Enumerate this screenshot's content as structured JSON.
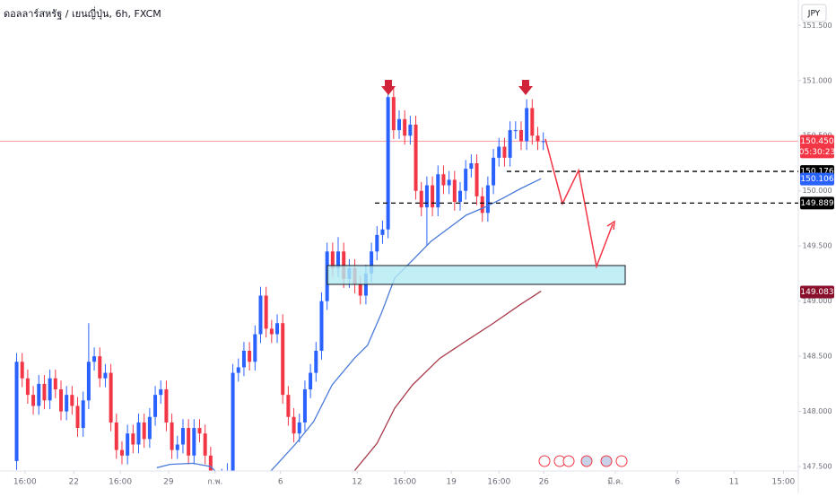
{
  "chart_data": {
    "type": "candlestick",
    "title": "ดอลลาร์สหรัฐ / เยนญี่ปุ่น, 6h, FXCM",
    "currency": "JPY",
    "up_color": "#2962ff",
    "down_color": "#f23645",
    "open": [
      147.55,
      148.45,
      148.3,
      148.15,
      148.05,
      148.25,
      148.1,
      148.3,
      148.2,
      148.0,
      148.15,
      148.05,
      147.85,
      148.1,
      148.45,
      148.5,
      148.3,
      148.35,
      147.9,
      147.65,
      147.6,
      147.8,
      147.7,
      147.9,
      147.75,
      147.95,
      148.15,
      148.2,
      147.9,
      147.65,
      147.7,
      147.85,
      147.6,
      147.85,
      147.8,
      147.6,
      147.35,
      147.3,
      147.4,
      147.45,
      148.35,
      148.4,
      148.55,
      148.45,
      148.7,
      149.05,
      148.75,
      148.7,
      148.8,
      148.15,
      147.95,
      147.8,
      147.9,
      148.2,
      148.35,
      148.55,
      149.0,
      149.45,
      149.3,
      149.45,
      149.2,
      149.3,
      149.15,
      149.05,
      149.25,
      149.45,
      149.6,
      149.65,
      150.85,
      150.55,
      150.65,
      150.5,
      150.6,
      150.0,
      149.85,
      150.05,
      149.85,
      150.15,
      150.05,
      150.1,
      149.9,
      150.0,
      150.2,
      150.25,
      149.95,
      149.8,
      150.05,
      150.3,
      150.4,
      150.3,
      150.55,
      150.55,
      150.45,
      150.75,
      150.5,
      150.45
    ],
    "high": [
      148.53,
      148.53,
      148.38,
      148.23,
      148.33,
      148.33,
      148.38,
      148.38,
      148.28,
      148.23,
      148.23,
      148.13,
      148.18,
      148.8,
      148.58,
      148.58,
      148.43,
      148.43,
      147.98,
      147.73,
      147.88,
      147.88,
      147.98,
      147.98,
      148.03,
      148.23,
      148.28,
      148.28,
      147.98,
      147.78,
      147.93,
      147.93,
      147.93,
      147.93,
      147.88,
      147.68,
      147.43,
      147.48,
      147.53,
      148.43,
      148.48,
      148.63,
      148.63,
      148.78,
      149.13,
      149.13,
      148.83,
      148.88,
      148.88,
      148.23,
      148.03,
      147.98,
      148.28,
      148.43,
      148.63,
      149.08,
      149.53,
      149.53,
      149.58,
      149.53,
      149.38,
      149.38,
      149.23,
      149.33,
      149.53,
      149.68,
      149.73,
      150.93,
      150.93,
      150.73,
      150.73,
      150.68,
      150.68,
      150.08,
      150.13,
      150.13,
      150.23,
      150.23,
      150.18,
      150.18,
      150.08,
      150.28,
      150.33,
      150.33,
      150.03,
      150.13,
      150.38,
      150.48,
      150.48,
      150.63,
      150.63,
      150.63,
      150.83,
      150.83,
      150.58,
      150.53
    ],
    "low": [
      147.47,
      148.22,
      148.07,
      147.97,
      147.97,
      148.02,
      148.02,
      148.12,
      147.92,
      147.92,
      147.97,
      147.77,
      147.77,
      148.02,
      148.37,
      148.22,
      148.22,
      147.82,
      147.57,
      147.52,
      147.52,
      147.62,
      147.62,
      147.67,
      147.67,
      147.87,
      148.07,
      147.82,
      147.57,
      147.57,
      147.62,
      147.52,
      147.52,
      147.72,
      147.52,
      147.27,
      147.22,
      147.22,
      147.32,
      147.37,
      148.27,
      148.32,
      148.37,
      148.37,
      148.62,
      148.67,
      148.62,
      148.62,
      148.07,
      147.87,
      147.72,
      147.72,
      147.82,
      148.12,
      148.27,
      148.47,
      148.92,
      149.22,
      149.22,
      149.12,
      149.12,
      149.07,
      148.97,
      148.97,
      149.17,
      149.37,
      149.52,
      149.57,
      150.47,
      150.47,
      150.42,
      150.42,
      149.92,
      149.77,
      149.5,
      149.77,
      149.77,
      149.97,
      149.97,
      149.82,
      149.82,
      149.92,
      150.12,
      149.87,
      149.72,
      149.72,
      149.97,
      150.22,
      150.22,
      150.22,
      150.47,
      150.37,
      150.37,
      150.42,
      150.37,
      150.37
    ],
    "close": [
      148.45,
      148.3,
      148.15,
      148.05,
      148.25,
      148.1,
      148.3,
      148.2,
      148.0,
      148.15,
      148.05,
      147.85,
      148.1,
      148.45,
      148.5,
      148.3,
      148.35,
      147.9,
      147.65,
      147.6,
      147.8,
      147.7,
      147.9,
      147.75,
      147.95,
      148.15,
      148.2,
      147.9,
      147.65,
      147.7,
      147.85,
      147.6,
      147.85,
      147.8,
      147.6,
      147.35,
      147.3,
      147.4,
      147.45,
      148.35,
      148.4,
      148.55,
      148.45,
      148.7,
      149.05,
      148.75,
      148.7,
      148.8,
      148.15,
      147.95,
      147.8,
      147.9,
      148.2,
      148.35,
      148.55,
      149.0,
      149.45,
      149.3,
      149.45,
      149.2,
      149.3,
      149.15,
      149.05,
      149.25,
      149.45,
      149.6,
      149.65,
      150.85,
      150.55,
      150.65,
      150.5,
      150.6,
      150.0,
      149.85,
      150.05,
      149.85,
      150.15,
      150.05,
      150.1,
      149.9,
      150.0,
      150.2,
      150.25,
      149.95,
      149.8,
      150.05,
      150.3,
      150.4,
      150.3,
      150.55,
      150.55,
      150.45,
      150.75,
      150.5,
      150.45,
      150.45
    ],
    "series": [
      {
        "color": "#4a7bd8",
        "x": [
          25.3,
          27.7,
          31.8,
          35.0,
          36.6,
          45.5,
          50.4,
          53.6,
          56.9,
          60.9,
          63.3,
          65.8,
          68.2,
          71.4,
          74.7,
          77.9,
          81.1,
          84.4,
          87.6,
          90.9,
          94.6
        ],
        "values": [
          147.49,
          147.52,
          147.53,
          147.5,
          147.42,
          147.44,
          147.71,
          147.91,
          148.24,
          148.48,
          148.6,
          148.89,
          149.21,
          149.37,
          149.54,
          149.66,
          149.78,
          149.85,
          149.93,
          150.02,
          150.11
        ]
      },
      {
        "color": "#a83a4a",
        "x": [
          60.9,
          65.0,
          68.2,
          71.4,
          76.3,
          81.1,
          86.0,
          90.9,
          94.6
        ],
        "values": [
          147.46,
          147.71,
          148.03,
          148.24,
          148.48,
          148.64,
          148.8,
          148.97,
          149.09
        ]
      }
    ],
    "xlim": [
      -3,
      141
    ],
    "xticks": [
      {
        "value": 1.5,
        "label": "16:00"
      },
      {
        "value": 10.3,
        "label": "22"
      },
      {
        "value": 18.7,
        "label": "16:00"
      },
      {
        "value": 27.4,
        "label": "29"
      },
      {
        "value": 35.8,
        "label": "ก.พ."
      },
      {
        "value": 47.6,
        "label": "6"
      },
      {
        "value": 61.4,
        "label": "12"
      },
      {
        "value": 70,
        "label": "16:00"
      },
      {
        "value": 78.4,
        "label": "19"
      },
      {
        "value": 87,
        "label": "16:00"
      },
      {
        "value": 95.1,
        "label": "26"
      },
      {
        "value": 108,
        "label": "มี.ค."
      },
      {
        "value": 119.2,
        "label": "6"
      },
      {
        "value": 129.4,
        "label": "11"
      },
      {
        "value": 138.3,
        "label": "15:00"
      }
    ],
    "ylim": [
      147.46,
      151.73
    ],
    "yticks": [
      {
        "value": 151.5,
        "label": "151.500"
      },
      {
        "value": 151,
        "label": "151.000"
      },
      {
        "value": 150.5,
        "label": "150.500"
      },
      {
        "value": 150,
        "label": "150.000"
      },
      {
        "value": 149.5,
        "label": "149.500"
      },
      {
        "value": 149,
        "label": "149.000"
      },
      {
        "value": 148.5,
        "label": "148.500"
      },
      {
        "value": 148,
        "label": "148.000"
      },
      {
        "value": 147.5,
        "label": "147.500"
      }
    ],
    "price_labels": [
      {
        "value": 150.45,
        "label": "150.450",
        "sub": "05:30:23",
        "color": "#f23645"
      },
      {
        "value": 150.176,
        "label": "150.176",
        "color": "#000000"
      },
      {
        "value": 150.106,
        "label": "150.106",
        "color": "#2962ff"
      },
      {
        "value": 149.889,
        "label": "149.889",
        "color": "#000000"
      },
      {
        "value": 149.083,
        "label": "149.083",
        "color": "#880e2a"
      }
    ],
    "grid": false
  }
}
